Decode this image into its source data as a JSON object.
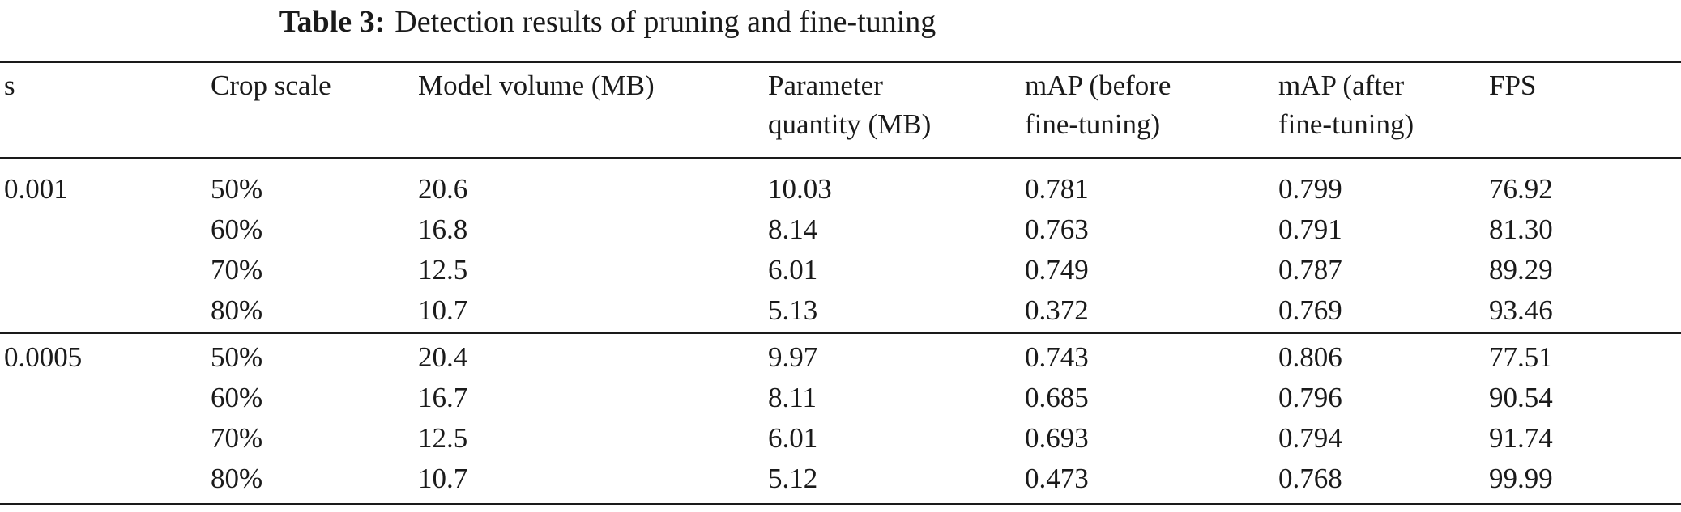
{
  "caption": {
    "label": "Table 3:",
    "text": "Detection results of pruning and fine-tuning"
  },
  "table": {
    "headers": [
      [
        "s"
      ],
      [
        "Crop scale"
      ],
      [
        "Model volume (MB)"
      ],
      [
        "Parameter",
        "quantity (MB)"
      ],
      [
        "mAP (before",
        "fine-tuning)"
      ],
      [
        "mAP (after",
        "fine-tuning)"
      ],
      [
        "FPS"
      ]
    ],
    "groups": [
      {
        "s": "0.001",
        "rows": [
          [
            "50%",
            "20.6",
            "10.03",
            "0.781",
            "0.799",
            "76.92"
          ],
          [
            "60%",
            "16.8",
            "8.14",
            "0.763",
            "0.791",
            "81.30"
          ],
          [
            "70%",
            "12.5",
            "6.01",
            "0.749",
            "0.787",
            "89.29"
          ],
          [
            "80%",
            "10.7",
            "5.13",
            "0.372",
            "0.769",
            "93.46"
          ]
        ]
      },
      {
        "s": "0.0005",
        "rows": [
          [
            "50%",
            "20.4",
            "9.97",
            "0.743",
            "0.806",
            "77.51"
          ],
          [
            "60%",
            "16.7",
            "8.11",
            "0.685",
            "0.796",
            "90.54"
          ],
          [
            "70%",
            "12.5",
            "6.01",
            "0.693",
            "0.794",
            "91.74"
          ],
          [
            "80%",
            "10.7",
            "5.12",
            "0.473",
            "0.768",
            "99.99"
          ]
        ]
      }
    ]
  }
}
